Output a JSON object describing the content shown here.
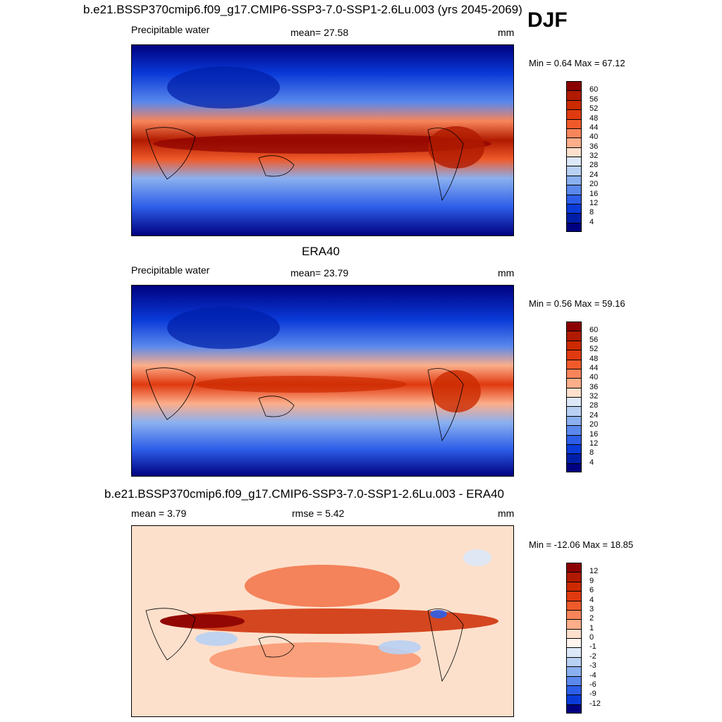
{
  "season": "DJF",
  "panel_top": {
    "title": "b.e21.BSSP370cmip6.f09_g17.CMIP6-SSP3-7.0-SSP1-2.6Lu.003 (yrs 2045-2069)",
    "variable": "Precipitable water",
    "stat": "mean=  27.58",
    "units": "mm",
    "minmax": "Min =   0.64 Max =  67.12"
  },
  "panel_mid": {
    "title": "ERA40",
    "variable": "Precipitable water",
    "stat": "mean=  23.79",
    "units": "mm",
    "minmax": "Min =   0.56 Max =  59.16"
  },
  "panel_diff": {
    "title": "b.e21.BSSP370cmip6.f09_g17.CMIP6-SSP3-7.0-SSP1-2.6Lu.003 - ERA40",
    "stat_mean": "mean =   3.79",
    "stat_rmse": "rmse =   5.42",
    "units": "mm",
    "minmax": "Min = -12.06 Max =  18.85"
  },
  "chart_data": [
    {
      "type": "heatmap",
      "title": "b.e21.BSSP370cmip6.f09_g17.CMIP6-SSP3-7.0-SSP1-2.6Lu.003 (yrs 2045-2069)",
      "variable": "Precipitable water",
      "units": "mm",
      "mean": 27.58,
      "min": 0.64,
      "max": 67.12,
      "colorbar_levels": [
        "60",
        "56",
        "52",
        "48",
        "44",
        "40",
        "36",
        "32",
        "28",
        "24",
        "20",
        "16",
        "12",
        "8",
        "4"
      ],
      "colorbar_colors": [
        "#8b0000",
        "#b01a00",
        "#cc2a00",
        "#e03a10",
        "#f05a2a",
        "#f8855a",
        "#fcae8a",
        "#fde0cc",
        "#dce8f8",
        "#b8d0f4",
        "#8ab0f0",
        "#5a88ec",
        "#2d5ee8",
        "#0a3ad8",
        "#001ea8",
        "#000080"
      ]
    },
    {
      "type": "heatmap",
      "title": "ERA40",
      "variable": "Precipitable water",
      "units": "mm",
      "mean": 23.79,
      "min": 0.56,
      "max": 59.16,
      "colorbar_levels": [
        "60",
        "56",
        "52",
        "48",
        "44",
        "40",
        "36",
        "32",
        "28",
        "24",
        "20",
        "16",
        "12",
        "8",
        "4"
      ],
      "colorbar_colors": [
        "#8b0000",
        "#b01a00",
        "#cc2a00",
        "#e03a10",
        "#f05a2a",
        "#f8855a",
        "#fcae8a",
        "#fde0cc",
        "#dce8f8",
        "#b8d0f4",
        "#8ab0f0",
        "#5a88ec",
        "#2d5ee8",
        "#0a3ad8",
        "#001ea8",
        "#000080"
      ]
    },
    {
      "type": "heatmap",
      "title": "b.e21.BSSP370cmip6.f09_g17.CMIP6-SSP3-7.0-SSP1-2.6Lu.003 - ERA40",
      "units": "mm",
      "mean": 3.79,
      "rmse": 5.42,
      "min": -12.06,
      "max": 18.85,
      "colorbar_levels": [
        "12",
        "9",
        "6",
        "4",
        "3",
        "2",
        "1",
        "0",
        "-1",
        "-2",
        "-3",
        "-4",
        "-6",
        "-9",
        "-12"
      ],
      "colorbar_colors": [
        "#8b0000",
        "#b01a00",
        "#cc2a00",
        "#e03a10",
        "#f05a2a",
        "#f8855a",
        "#fcae8a",
        "#fde0cc",
        "#fff5ee",
        "#dce8f8",
        "#b8d0f4",
        "#8ab0f0",
        "#5a88ec",
        "#2d5ee8",
        "#0a3ad8",
        "#000080"
      ]
    }
  ]
}
